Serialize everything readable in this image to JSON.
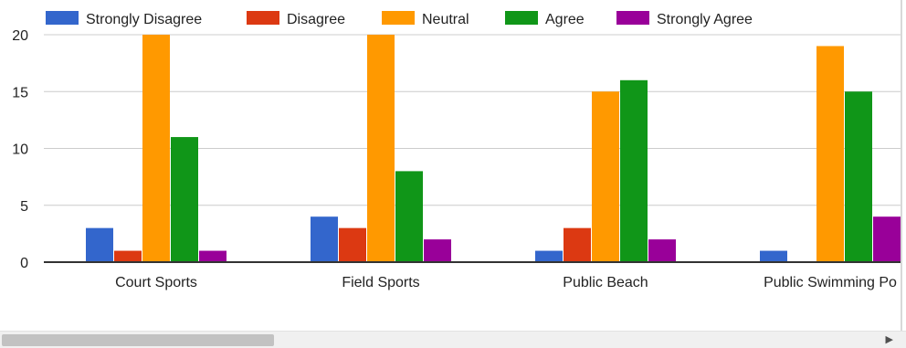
{
  "colors": {
    "strongly_disagree": "#3366cc",
    "disagree": "#dc3912",
    "neutral": "#ff9900",
    "agree": "#109618",
    "strongly_agree": "#990099",
    "grid": "#cccccc",
    "baseline": "#333333"
  },
  "scrollbar": {
    "thumb_icon": "scrollbar-thumb",
    "right_arrow_icon": "triangle-right-icon",
    "right_arrow_glyph": "▶"
  },
  "chart_data": {
    "type": "bar",
    "categories": [
      "Court Sports",
      "Field Sports",
      "Public Beach",
      "Public Swimming Po"
    ],
    "series": [
      {
        "name": "Strongly Disagree",
        "values": [
          3,
          4,
          1,
          1
        ]
      },
      {
        "name": "Disagree",
        "values": [
          1,
          3,
          3,
          0
        ]
      },
      {
        "name": "Neutral",
        "values": [
          20,
          20,
          15,
          19
        ]
      },
      {
        "name": "Agree",
        "values": [
          11,
          8,
          16,
          15
        ]
      },
      {
        "name": "Strongly Agree",
        "values": [
          1,
          2,
          2,
          4
        ]
      }
    ],
    "title": "",
    "xlabel": "",
    "ylabel": "",
    "ylim": [
      0,
      20
    ],
    "yticks": [
      "0",
      "5",
      "10",
      "15",
      "20"
    ],
    "grid": true,
    "legend_position": "top"
  }
}
